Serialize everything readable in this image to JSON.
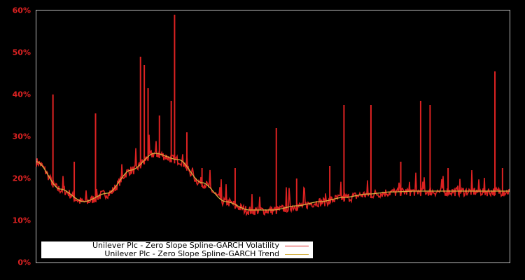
{
  "chart_data": {
    "type": "line",
    "title": "",
    "xlabel": "",
    "ylabel": "",
    "ylim": [
      0,
      60
    ],
    "y_ticks": [
      "0%",
      "10%",
      "20%",
      "30%",
      "40%",
      "50%",
      "60%"
    ],
    "grid": false,
    "legend_position": "lower-left",
    "series": [
      {
        "name": "Unilever Plc - Zero Slope Spline-GARCH Volatility",
        "color": "#dd2222",
        "x": [
          0,
          0.02,
          0.04,
          0.06,
          0.08,
          0.1,
          0.12,
          0.14,
          0.16,
          0.18,
          0.2,
          0.22,
          0.24,
          0.26,
          0.28,
          0.3,
          0.32,
          0.34,
          0.36,
          0.38,
          0.4,
          0.42,
          0.44,
          0.46,
          0.48,
          0.5,
          0.52,
          0.54,
          0.56,
          0.58,
          0.6,
          0.62,
          0.64,
          0.66,
          0.68,
          0.7,
          0.72,
          0.74,
          0.76,
          0.78,
          0.8,
          0.82,
          0.84,
          0.86,
          0.88,
          0.9,
          0.92,
          0.94,
          0.96,
          0.98,
          1.0
        ],
        "values": [
          27,
          22,
          18,
          16,
          15,
          15,
          16,
          18,
          21,
          24,
          26,
          26,
          25,
          24,
          22,
          19,
          17,
          15,
          14,
          13,
          13,
          12,
          12,
          13,
          13,
          14,
          14,
          15,
          15,
          15,
          16,
          16,
          16,
          17,
          17,
          17,
          17,
          17,
          17,
          17,
          17,
          17,
          17,
          17,
          17,
          17,
          17,
          17,
          17,
          17,
          17
        ],
        "spikes": [
          {
            "x": 0.035,
            "value": 40
          },
          {
            "x": 0.08,
            "value": 24
          },
          {
            "x": 0.125,
            "value": 35.5
          },
          {
            "x": 0.22,
            "value": 49
          },
          {
            "x": 0.228,
            "value": 47
          },
          {
            "x": 0.236,
            "value": 41.5
          },
          {
            "x": 0.26,
            "value": 35
          },
          {
            "x": 0.285,
            "value": 38.5
          },
          {
            "x": 0.292,
            "value": 59
          },
          {
            "x": 0.318,
            "value": 31
          },
          {
            "x": 0.35,
            "value": 22.5
          },
          {
            "x": 0.42,
            "value": 22.5
          },
          {
            "x": 0.507,
            "value": 32
          },
          {
            "x": 0.55,
            "value": 20
          },
          {
            "x": 0.62,
            "value": 23
          },
          {
            "x": 0.65,
            "value": 37.5
          },
          {
            "x": 0.707,
            "value": 37.5
          },
          {
            "x": 0.77,
            "value": 24
          },
          {
            "x": 0.812,
            "value": 38.5
          },
          {
            "x": 0.832,
            "value": 37.5
          },
          {
            "x": 0.87,
            "value": 22.5
          },
          {
            "x": 0.969,
            "value": 45.5
          },
          {
            "x": 0.985,
            "value": 22.5
          }
        ]
      },
      {
        "name": "Unilever Plc - Zero Slope Spline-GARCH Trend",
        "color": "#d4b040",
        "x": [
          0,
          0.05,
          0.1,
          0.15,
          0.2,
          0.25,
          0.3,
          0.35,
          0.4,
          0.45,
          0.5,
          0.55,
          0.6,
          0.65,
          0.7,
          0.75,
          0.8,
          0.85,
          0.9,
          0.95,
          1.0
        ],
        "values": [
          24,
          17.5,
          14.5,
          16.5,
          22,
          26,
          24.5,
          19,
          14.5,
          12.5,
          12.5,
          13.5,
          14.5,
          15.5,
          16.3,
          16.8,
          17,
          17,
          17,
          17,
          17
        ]
      }
    ]
  },
  "legend": {
    "items": [
      {
        "label": "Unilever Plc - Zero Slope Spline-GARCH Volatility",
        "color": "#dd2222"
      },
      {
        "label": "Unilever Plc - Zero Slope Spline-GARCH Trend",
        "color": "#d4b040"
      }
    ]
  },
  "colors": {
    "background": "#000000",
    "axis": "#bbbbbb",
    "tick_label": "#dd2222"
  }
}
